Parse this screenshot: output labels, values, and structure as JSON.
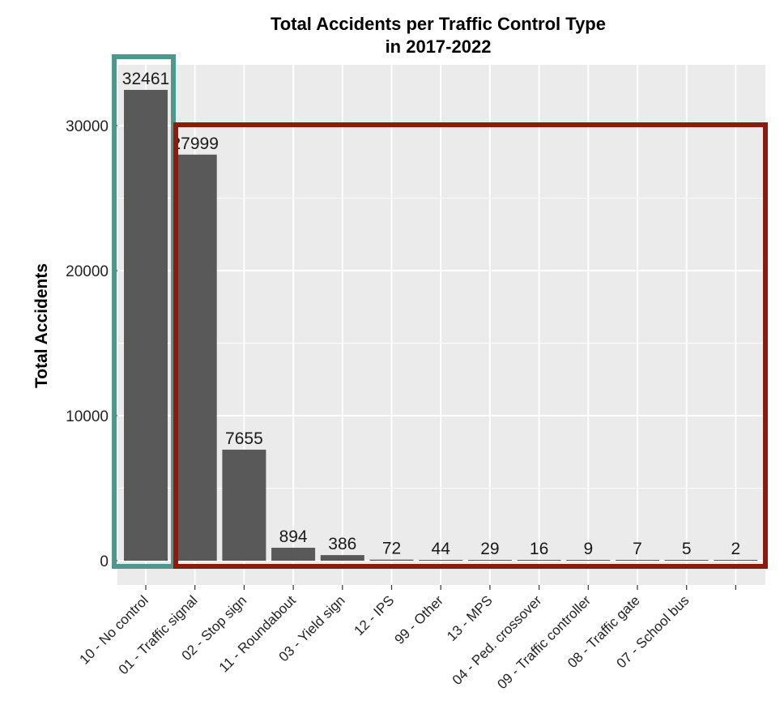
{
  "chart_data": {
    "type": "bar",
    "title_lines": [
      "Total Accidents per Traffic Control Type",
      "in 2017-2022"
    ],
    "xlabel": "",
    "ylabel": "Total Accidents",
    "categories": [
      "10 - No control",
      "01 - Traffic signal",
      "02 - Stop sign",
      "11 - Roundabout",
      "03 - Yield sign",
      "12 - IPS",
      "99 - Other",
      "13 - MPS",
      "04 - Ped. crossover",
      "09 - Traffic controller",
      "08 - Traffic gate",
      "07 - School bus",
      ""
    ],
    "values": [
      32461,
      27999,
      7655,
      894,
      386,
      72,
      44,
      29,
      16,
      9,
      7,
      5,
      2
    ],
    "data_labels": [
      "32461",
      "27999",
      "7655",
      "894",
      "386",
      "72",
      "44",
      "29",
      "16",
      "9",
      "7",
      "5",
      "2"
    ],
    "yticks": [
      0,
      10000,
      20000,
      30000
    ],
    "ytick_labels": [
      "0",
      "10000",
      "20000",
      "30000"
    ],
    "ylim": [
      -1500,
      34100
    ],
    "grid": true,
    "legend": "none",
    "colors": {
      "bar": "#595959",
      "panel": "#ebebeb",
      "grid": "#ffffff",
      "highlight_teal": "#4a9a8c",
      "highlight_red": "#8b1a10"
    },
    "annotations": [
      {
        "type": "box",
        "color": "#4a9a8c",
        "covers": "10 - No control"
      },
      {
        "type": "box",
        "color": "#8b1a10",
        "covers": "01 - Traffic signal to last category, 0 to 30000"
      }
    ]
  }
}
